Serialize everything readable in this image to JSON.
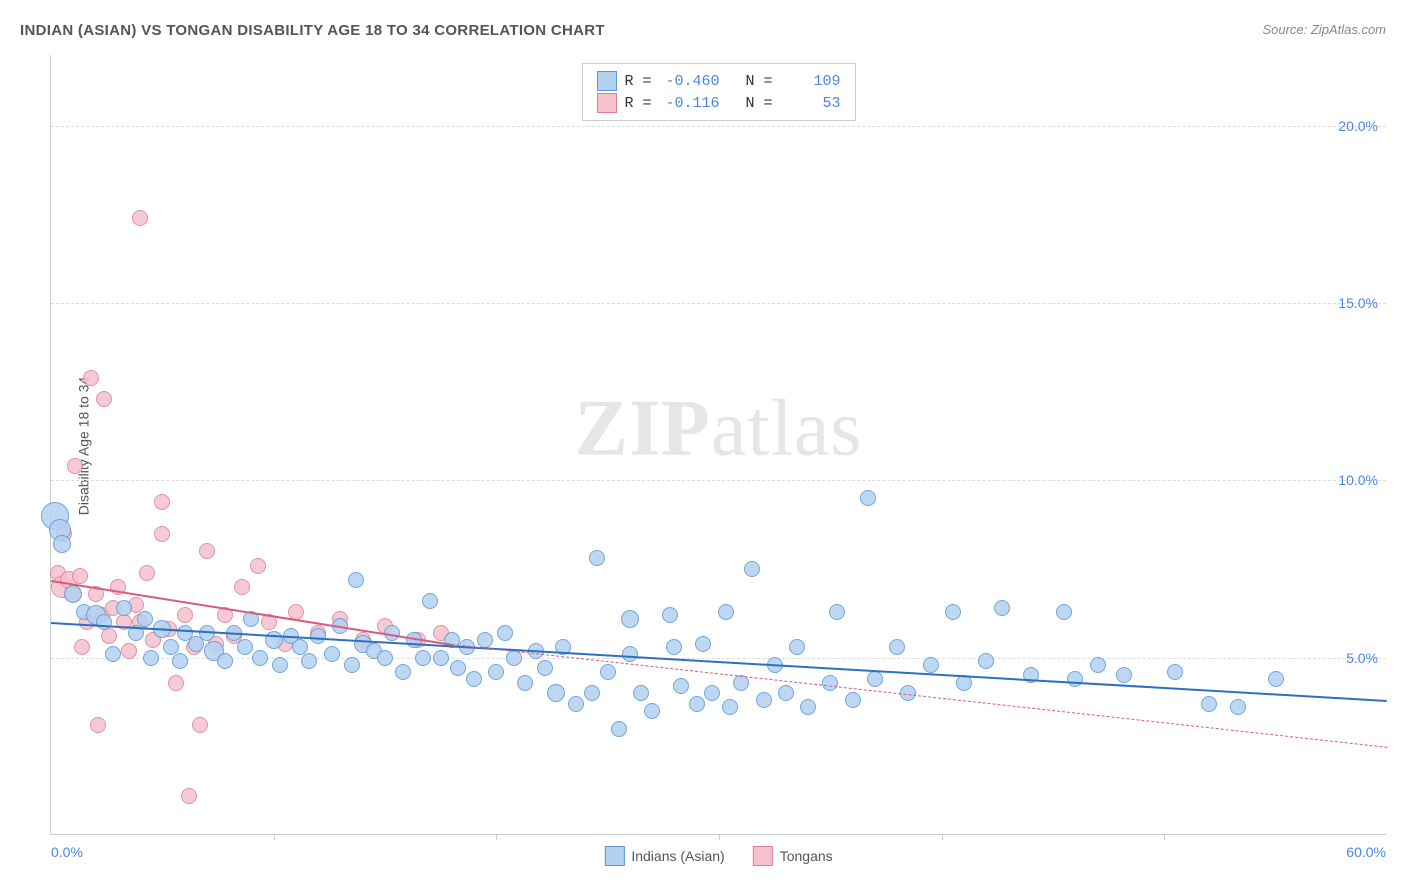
{
  "title": "INDIAN (ASIAN) VS TONGAN DISABILITY AGE 18 TO 34 CORRELATION CHART",
  "source": "Source: ZipAtlas.com",
  "y_axis_title": "Disability Age 18 to 34",
  "watermark": {
    "bold": "ZIP",
    "rest": "atlas"
  },
  "chart": {
    "type": "scatter",
    "background_color": "#ffffff",
    "grid_color": "#dddddd",
    "axis_color": "#cccccc",
    "xlim": [
      0,
      60
    ],
    "ylim": [
      0,
      22
    ],
    "x_min_label": "0.0%",
    "x_max_label": "60.0%",
    "x_ticks": [
      10,
      20,
      30,
      40,
      50
    ],
    "y_grid": [
      {
        "val": 5,
        "label": "5.0%"
      },
      {
        "val": 10,
        "label": "10.0%"
      },
      {
        "val": 15,
        "label": "15.0%"
      },
      {
        "val": 20,
        "label": "20.0%"
      }
    ],
    "tick_label_color": "#4a86e8",
    "tick_label_fontsize": 14,
    "title_fontsize": 15,
    "title_color": "#555555"
  },
  "series": {
    "indians": {
      "label": "Indians (Asian)",
      "fill": "#b3d1f0",
      "stroke": "#5a97d6",
      "line_color": "#2f6fc1",
      "R": "-0.460",
      "N": "109",
      "base_radius": 8,
      "trend": {
        "x1": 0,
        "y1": 6.0,
        "x2": 60,
        "y2": 3.8
      },
      "points": [
        {
          "x": 0.2,
          "y": 9.0,
          "r": 14
        },
        {
          "x": 0.4,
          "y": 8.6,
          "r": 11
        },
        {
          "x": 0.5,
          "y": 8.2,
          "r": 9
        },
        {
          "x": 1.0,
          "y": 6.8,
          "r": 9
        },
        {
          "x": 1.5,
          "y": 6.3,
          "r": 8
        },
        {
          "x": 2.0,
          "y": 6.2,
          "r": 10
        },
        {
          "x": 2.4,
          "y": 6.0,
          "r": 8
        },
        {
          "x": 2.8,
          "y": 5.1,
          "r": 8
        },
        {
          "x": 3.3,
          "y": 6.4,
          "r": 8
        },
        {
          "x": 3.8,
          "y": 5.7,
          "r": 8
        },
        {
          "x": 4.2,
          "y": 6.1,
          "r": 8
        },
        {
          "x": 4.5,
          "y": 5.0,
          "r": 8
        },
        {
          "x": 5.0,
          "y": 5.8,
          "r": 9
        },
        {
          "x": 5.4,
          "y": 5.3,
          "r": 8
        },
        {
          "x": 5.8,
          "y": 4.9,
          "r": 8
        },
        {
          "x": 6.0,
          "y": 5.7,
          "r": 8
        },
        {
          "x": 6.5,
          "y": 5.4,
          "r": 8
        },
        {
          "x": 7.0,
          "y": 5.7,
          "r": 8
        },
        {
          "x": 7.3,
          "y": 5.2,
          "r": 10
        },
        {
          "x": 7.8,
          "y": 4.9,
          "r": 8
        },
        {
          "x": 8.2,
          "y": 5.7,
          "r": 8
        },
        {
          "x": 8.7,
          "y": 5.3,
          "r": 8
        },
        {
          "x": 9.0,
          "y": 6.1,
          "r": 8
        },
        {
          "x": 9.4,
          "y": 5.0,
          "r": 8
        },
        {
          "x": 10.0,
          "y": 5.5,
          "r": 9
        },
        {
          "x": 10.3,
          "y": 4.8,
          "r": 8
        },
        {
          "x": 10.8,
          "y": 5.6,
          "r": 8
        },
        {
          "x": 11.2,
          "y": 5.3,
          "r": 8
        },
        {
          "x": 11.6,
          "y": 4.9,
          "r": 8
        },
        {
          "x": 12.0,
          "y": 5.6,
          "r": 8
        },
        {
          "x": 12.6,
          "y": 5.1,
          "r": 8
        },
        {
          "x": 13.0,
          "y": 5.9,
          "r": 8
        },
        {
          "x": 13.5,
          "y": 4.8,
          "r": 8
        },
        {
          "x": 13.7,
          "y": 7.2,
          "r": 8
        },
        {
          "x": 14.0,
          "y": 5.4,
          "r": 9
        },
        {
          "x": 14.5,
          "y": 5.2,
          "r": 8
        },
        {
          "x": 15.0,
          "y": 5.0,
          "r": 8
        },
        {
          "x": 15.3,
          "y": 5.7,
          "r": 8
        },
        {
          "x": 15.8,
          "y": 4.6,
          "r": 8
        },
        {
          "x": 16.3,
          "y": 5.5,
          "r": 8
        },
        {
          "x": 16.7,
          "y": 5.0,
          "r": 8
        },
        {
          "x": 17.0,
          "y": 6.6,
          "r": 8
        },
        {
          "x": 17.5,
          "y": 5.0,
          "r": 8
        },
        {
          "x": 18.0,
          "y": 5.5,
          "r": 8
        },
        {
          "x": 18.3,
          "y": 4.7,
          "r": 8
        },
        {
          "x": 18.7,
          "y": 5.3,
          "r": 8
        },
        {
          "x": 19.0,
          "y": 4.4,
          "r": 8
        },
        {
          "x": 19.5,
          "y": 5.5,
          "r": 8
        },
        {
          "x": 20.0,
          "y": 4.6,
          "r": 8
        },
        {
          "x": 20.4,
          "y": 5.7,
          "r": 8
        },
        {
          "x": 20.8,
          "y": 5.0,
          "r": 8
        },
        {
          "x": 21.3,
          "y": 4.3,
          "r": 8
        },
        {
          "x": 21.8,
          "y": 5.2,
          "r": 8
        },
        {
          "x": 22.2,
          "y": 4.7,
          "r": 8
        },
        {
          "x": 22.7,
          "y": 4.0,
          "r": 9
        },
        {
          "x": 23.0,
          "y": 5.3,
          "r": 8
        },
        {
          "x": 23.6,
          "y": 3.7,
          "r": 8
        },
        {
          "x": 24.3,
          "y": 4.0,
          "r": 8
        },
        {
          "x": 24.5,
          "y": 7.8,
          "r": 8
        },
        {
          "x": 25.0,
          "y": 4.6,
          "r": 8
        },
        {
          "x": 25.5,
          "y": 3.0,
          "r": 8
        },
        {
          "x": 26.0,
          "y": 5.1,
          "r": 8
        },
        {
          "x": 26.0,
          "y": 6.1,
          "r": 9
        },
        {
          "x": 26.5,
          "y": 4.0,
          "r": 8
        },
        {
          "x": 27.0,
          "y": 3.5,
          "r": 8
        },
        {
          "x": 27.8,
          "y": 6.2,
          "r": 8
        },
        {
          "x": 28.0,
          "y": 5.3,
          "r": 8
        },
        {
          "x": 28.3,
          "y": 4.2,
          "r": 8
        },
        {
          "x": 29.0,
          "y": 3.7,
          "r": 8
        },
        {
          "x": 29.3,
          "y": 5.4,
          "r": 8
        },
        {
          "x": 29.7,
          "y": 4.0,
          "r": 8
        },
        {
          "x": 30.3,
          "y": 6.3,
          "r": 8
        },
        {
          "x": 30.5,
          "y": 3.6,
          "r": 8
        },
        {
          "x": 31.0,
          "y": 4.3,
          "r": 8
        },
        {
          "x": 31.5,
          "y": 7.5,
          "r": 8
        },
        {
          "x": 32.0,
          "y": 3.8,
          "r": 8
        },
        {
          "x": 32.5,
          "y": 4.8,
          "r": 8
        },
        {
          "x": 33.0,
          "y": 4.0,
          "r": 8
        },
        {
          "x": 33.5,
          "y": 5.3,
          "r": 8
        },
        {
          "x": 34.0,
          "y": 3.6,
          "r": 8
        },
        {
          "x": 35.0,
          "y": 4.3,
          "r": 8
        },
        {
          "x": 35.3,
          "y": 6.3,
          "r": 8
        },
        {
          "x": 36.0,
          "y": 3.8,
          "r": 8
        },
        {
          "x": 36.7,
          "y": 9.5,
          "r": 8
        },
        {
          "x": 37.0,
          "y": 4.4,
          "r": 8
        },
        {
          "x": 38.0,
          "y": 5.3,
          "r": 8
        },
        {
          "x": 38.5,
          "y": 4.0,
          "r": 8
        },
        {
          "x": 39.5,
          "y": 4.8,
          "r": 8
        },
        {
          "x": 40.5,
          "y": 6.3,
          "r": 8
        },
        {
          "x": 41.0,
          "y": 4.3,
          "r": 8
        },
        {
          "x": 42.0,
          "y": 4.9,
          "r": 8
        },
        {
          "x": 42.7,
          "y": 6.4,
          "r": 8
        },
        {
          "x": 44.0,
          "y": 4.5,
          "r": 8
        },
        {
          "x": 45.5,
          "y": 6.3,
          "r": 8
        },
        {
          "x": 46.0,
          "y": 4.4,
          "r": 8
        },
        {
          "x": 47.0,
          "y": 4.8,
          "r": 8
        },
        {
          "x": 48.2,
          "y": 4.5,
          "r": 8
        },
        {
          "x": 50.5,
          "y": 4.6,
          "r": 8
        },
        {
          "x": 52.0,
          "y": 3.7,
          "r": 8
        },
        {
          "x": 53.3,
          "y": 3.6,
          "r": 8
        },
        {
          "x": 55.0,
          "y": 4.4,
          "r": 8
        }
      ]
    },
    "tongans": {
      "label": "Tongans",
      "fill": "#f5c1cd",
      "stroke": "#e07d9c",
      "line_color": "#d85a80",
      "R": "-0.116",
      "N": "53",
      "base_radius": 8,
      "trend_solid": {
        "x1": 0,
        "y1": 7.2,
        "x2": 18,
        "y2": 5.4
      },
      "trend_dash": {
        "x1": 18,
        "y1": 5.4,
        "x2": 60,
        "y2": 2.5
      },
      "points": [
        {
          "x": 0.3,
          "y": 7.4,
          "r": 8
        },
        {
          "x": 0.5,
          "y": 7.0,
          "r": 11
        },
        {
          "x": 0.8,
          "y": 7.2,
          "r": 9
        },
        {
          "x": 1.0,
          "y": 6.8,
          "r": 8
        },
        {
          "x": 0.6,
          "y": 8.5,
          "r": 8
        },
        {
          "x": 1.3,
          "y": 7.3,
          "r": 8
        },
        {
          "x": 1.6,
          "y": 6.0,
          "r": 8
        },
        {
          "x": 1.1,
          "y": 10.4,
          "r": 8
        },
        {
          "x": 2.0,
          "y": 6.8,
          "r": 8
        },
        {
          "x": 2.3,
          "y": 6.2,
          "r": 8
        },
        {
          "x": 1.4,
          "y": 5.3,
          "r": 8
        },
        {
          "x": 2.6,
          "y": 5.6,
          "r": 8
        },
        {
          "x": 2.8,
          "y": 6.4,
          "r": 8
        },
        {
          "x": 1.8,
          "y": 12.9,
          "r": 8
        },
        {
          "x": 3.0,
          "y": 7.0,
          "r": 8
        },
        {
          "x": 3.3,
          "y": 6.0,
          "r": 8
        },
        {
          "x": 2.1,
          "y": 3.1,
          "r": 8
        },
        {
          "x": 3.5,
          "y": 5.2,
          "r": 8
        },
        {
          "x": 3.8,
          "y": 6.5,
          "r": 8
        },
        {
          "x": 2.4,
          "y": 12.3,
          "r": 8
        },
        {
          "x": 4.0,
          "y": 6.0,
          "r": 8
        },
        {
          "x": 4.3,
          "y": 7.4,
          "r": 8
        },
        {
          "x": 4.6,
          "y": 5.5,
          "r": 8
        },
        {
          "x": 4.0,
          "y": 17.4,
          "r": 8
        },
        {
          "x": 5.0,
          "y": 8.5,
          "r": 8
        },
        {
          "x": 5.3,
          "y": 5.8,
          "r": 8
        },
        {
          "x": 5.6,
          "y": 4.3,
          "r": 8
        },
        {
          "x": 5.0,
          "y": 9.4,
          "r": 8
        },
        {
          "x": 6.0,
          "y": 6.2,
          "r": 8
        },
        {
          "x": 6.4,
          "y": 5.3,
          "r": 8
        },
        {
          "x": 6.7,
          "y": 3.1,
          "r": 8
        },
        {
          "x": 7.0,
          "y": 8.0,
          "r": 8
        },
        {
          "x": 7.4,
          "y": 5.4,
          "r": 8
        },
        {
          "x": 7.8,
          "y": 6.2,
          "r": 8
        },
        {
          "x": 6.2,
          "y": 1.1,
          "r": 8
        },
        {
          "x": 8.2,
          "y": 5.6,
          "r": 8
        },
        {
          "x": 8.6,
          "y": 7.0,
          "r": 8
        },
        {
          "x": 9.3,
          "y": 7.6,
          "r": 8
        },
        {
          "x": 9.8,
          "y": 6.0,
          "r": 8
        },
        {
          "x": 10.5,
          "y": 5.4,
          "r": 8
        },
        {
          "x": 11.0,
          "y": 6.3,
          "r": 8
        },
        {
          "x": 12.0,
          "y": 5.7,
          "r": 8
        },
        {
          "x": 13.0,
          "y": 6.1,
          "r": 8
        },
        {
          "x": 14.0,
          "y": 5.5,
          "r": 8
        },
        {
          "x": 15.0,
          "y": 5.9,
          "r": 8
        },
        {
          "x": 16.5,
          "y": 5.5,
          "r": 8
        },
        {
          "x": 17.5,
          "y": 5.7,
          "r": 8
        }
      ]
    }
  },
  "stats_box": {
    "R_label": "R =",
    "N_label": "N ="
  },
  "bottom_legend": {
    "items": [
      "indians",
      "tongans"
    ]
  }
}
